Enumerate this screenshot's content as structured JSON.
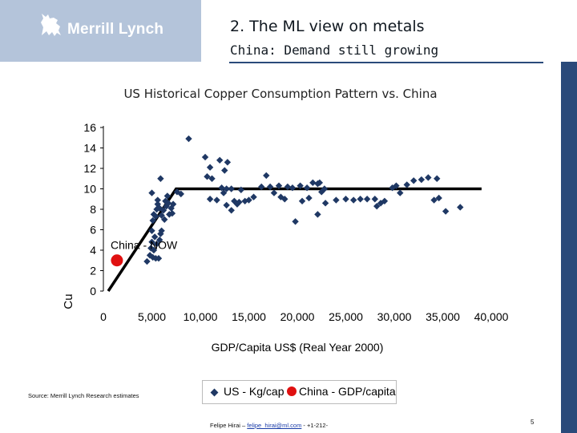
{
  "header": {
    "logo_text": "Merrill Lynch",
    "title": "2. The ML view on metals",
    "subtitle": "China: Demand still growing"
  },
  "chart_data": {
    "type": "scatter",
    "title": "US Historical Copper Consumption Pattern vs. China",
    "xlabel": "GDP/Capita US$ (Real Year 2000)",
    "ylabel": "Cu",
    "xlim": [
      0,
      40000
    ],
    "ylim": [
      0,
      16
    ],
    "x_ticks": [
      "0",
      "5,000",
      "10,000",
      "15,000",
      "20,000",
      "25,000",
      "30,000",
      "35,000",
      "40,000"
    ],
    "y_ticks": [
      "0",
      "2",
      "4",
      "6",
      "8",
      "10",
      "12",
      "14",
      "16"
    ],
    "annotation": "China - NOW",
    "legend": [
      "US - Kg/cap",
      "China - GDP/capita"
    ],
    "colors": {
      "us": "#1f3864",
      "china": "#e01010",
      "trend": "#000000"
    },
    "trend_line": {
      "x": [
        500,
        7500,
        39000
      ],
      "y": [
        0,
        10,
        10
      ]
    },
    "series": [
      {
        "name": "US - Kg/cap",
        "points": [
          [
            4500,
            2.9
          ],
          [
            4800,
            3.5
          ],
          [
            4900,
            4.2
          ],
          [
            5000,
            4.8
          ],
          [
            5100,
            3.3
          ],
          [
            5200,
            4.0
          ],
          [
            5300,
            5.3
          ],
          [
            5400,
            3.2
          ],
          [
            5500,
            4.6
          ],
          [
            5700,
            3.2
          ],
          [
            5800,
            5.0
          ],
          [
            5900,
            5.6
          ],
          [
            6000,
            5.9
          ],
          [
            5000,
            5.9
          ],
          [
            5100,
            6.9
          ],
          [
            5200,
            7.5
          ],
          [
            5400,
            7.3
          ],
          [
            5500,
            8.0
          ],
          [
            5600,
            8.5
          ],
          [
            5800,
            8.1
          ],
          [
            6000,
            7.4
          ],
          [
            6200,
            7.9
          ],
          [
            6300,
            7.0
          ],
          [
            6500,
            8.3
          ],
          [
            6800,
            7.5
          ],
          [
            7000,
            8.1
          ],
          [
            5000,
            9.6
          ],
          [
            5600,
            8.9
          ],
          [
            5900,
            11.0
          ],
          [
            6400,
            8.8
          ],
          [
            6600,
            9.3
          ],
          [
            7200,
            8.5
          ],
          [
            7600,
            9.7
          ],
          [
            7100,
            7.6
          ],
          [
            6700,
            8.6
          ],
          [
            8000,
            9.5
          ],
          [
            8800,
            14.9
          ],
          [
            10500,
            13.1
          ],
          [
            10700,
            11.2
          ],
          [
            11000,
            12.1
          ],
          [
            11200,
            11.0
          ],
          [
            12000,
            12.8
          ],
          [
            12500,
            11.8
          ],
          [
            12800,
            12.6
          ],
          [
            12200,
            10.1
          ],
          [
            12700,
            10.0
          ],
          [
            13200,
            10.0
          ],
          [
            11000,
            9.0
          ],
          [
            11700,
            8.9
          ],
          [
            12400,
            9.6
          ],
          [
            12700,
            8.4
          ],
          [
            13500,
            8.8
          ],
          [
            13800,
            8.5
          ],
          [
            14000,
            8.7
          ],
          [
            13200,
            7.9
          ],
          [
            14200,
            9.9
          ],
          [
            14600,
            8.8
          ],
          [
            15000,
            8.9
          ],
          [
            15500,
            9.2
          ],
          [
            16300,
            10.2
          ],
          [
            16800,
            11.3
          ],
          [
            17200,
            10.2
          ],
          [
            17600,
            9.6
          ],
          [
            18100,
            10.3
          ],
          [
            18300,
            9.2
          ],
          [
            18700,
            9.0
          ],
          [
            19000,
            10.2
          ],
          [
            19500,
            10.1
          ],
          [
            19800,
            6.8
          ],
          [
            20300,
            10.3
          ],
          [
            20500,
            8.8
          ],
          [
            21000,
            10.1
          ],
          [
            21600,
            10.6
          ],
          [
            21200,
            9.1
          ],
          [
            22100,
            10.5
          ],
          [
            22300,
            10.6
          ],
          [
            22500,
            9.7
          ],
          [
            22800,
            10.0
          ],
          [
            22100,
            7.5
          ],
          [
            22900,
            8.6
          ],
          [
            24000,
            8.9
          ],
          [
            25000,
            9.0
          ],
          [
            25800,
            8.9
          ],
          [
            26500,
            9.0
          ],
          [
            27200,
            9.0
          ],
          [
            28000,
            9.0
          ],
          [
            28200,
            8.3
          ],
          [
            28600,
            8.6
          ],
          [
            29000,
            8.8
          ],
          [
            29800,
            10.1
          ],
          [
            30200,
            10.3
          ],
          [
            30600,
            9.6
          ],
          [
            31300,
            10.4
          ],
          [
            32000,
            10.8
          ],
          [
            32800,
            10.9
          ],
          [
            33500,
            11.1
          ],
          [
            34100,
            8.9
          ],
          [
            34400,
            11.0
          ],
          [
            34600,
            9.1
          ],
          [
            35300,
            7.8
          ],
          [
            36800,
            8.2
          ]
        ]
      },
      {
        "name": "China - GDP/capita",
        "points": [
          [
            1400,
            3.0
          ]
        ]
      }
    ]
  },
  "footer": {
    "source": "Source: Merrill Lynch Research estimates",
    "contact_prefix": "Felipe Hirai – ",
    "email": "felipe_hirai@ml.com",
    "contact_suffix": " - +1-212-",
    "page_number": "5"
  }
}
